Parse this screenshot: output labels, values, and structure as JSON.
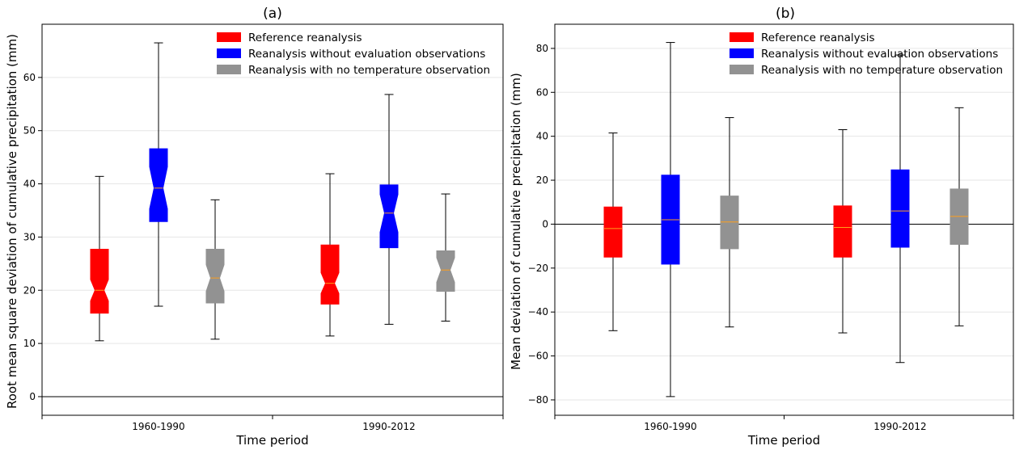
{
  "colors": {
    "reference": "#ff0000",
    "without_eval": "#0000ff",
    "no_temperature": "#929292",
    "median": "#ff9f1c",
    "zero_line": "#000000",
    "grid": "#e6e6e6"
  },
  "chart_data": [
    {
      "type": "box",
      "title": "(a)",
      "xlabel": "Time period",
      "ylabel": "Root mean square deviation of cumulative precipitation (mm)",
      "categories": [
        "1960-1990",
        "1990-2012"
      ],
      "ylim": [
        -3.5,
        70
      ],
      "yticks": [
        0,
        10,
        20,
        30,
        40,
        50,
        60
      ],
      "grid": "horizontal",
      "zero_line": true,
      "legend_position": "top-right",
      "notched": true,
      "series": [
        {
          "name": "Reference reanalysis",
          "color_key": "reference",
          "boxes": [
            {
              "whisker_low": 10.5,
              "q1": 15.7,
              "median": 20.0,
              "q3": 27.7,
              "whisker_high": 41.4,
              "notch_low": 18.0,
              "notch_high": 22.0
            },
            {
              "whisker_low": 11.4,
              "q1": 17.4,
              "median": 21.3,
              "q3": 28.5,
              "whisker_high": 41.9,
              "notch_low": 19.4,
              "notch_high": 23.3
            }
          ]
        },
        {
          "name": "Reanalysis without evaluation observations",
          "color_key": "without_eval",
          "boxes": [
            {
              "whisker_low": 17.0,
              "q1": 32.9,
              "median": 39.2,
              "q3": 46.6,
              "whisker_high": 66.5,
              "notch_low": 35.3,
              "notch_high": 43.2
            },
            {
              "whisker_low": 13.6,
              "q1": 28.0,
              "median": 34.5,
              "q3": 39.8,
              "whisker_high": 56.8,
              "notch_low": 30.9,
              "notch_high": 38.0
            }
          ]
        },
        {
          "name": "Reanalysis with no temperature observation",
          "color_key": "no_temperature",
          "boxes": [
            {
              "whisker_low": 10.8,
              "q1": 17.6,
              "median": 22.3,
              "q3": 27.7,
              "whisker_high": 37.0,
              "notch_low": 19.8,
              "notch_high": 24.8
            },
            {
              "whisker_low": 14.2,
              "q1": 19.8,
              "median": 23.8,
              "q3": 27.4,
              "whisker_high": 38.1,
              "notch_low": 21.5,
              "notch_high": 26.1
            }
          ]
        }
      ]
    },
    {
      "type": "box",
      "title": "(b)",
      "xlabel": "Time period",
      "ylabel": "Mean deviation of cumulative precipitation (mm)",
      "categories": [
        "1960-1990",
        "1990-2012"
      ],
      "ylim": [
        -87,
        91
      ],
      "yticks": [
        -80,
        -60,
        -40,
        -20,
        0,
        20,
        40,
        60,
        80
      ],
      "grid": "horizontal",
      "zero_line": true,
      "legend_position": "top-right",
      "notched": false,
      "series": [
        {
          "name": "Reference reanalysis",
          "color_key": "reference",
          "boxes": [
            {
              "whisker_low": -48.5,
              "q1": -15.0,
              "median": -2.0,
              "q3": 7.8,
              "whisker_high": 41.5
            },
            {
              "whisker_low": -49.5,
              "q1": -15.0,
              "median": -1.5,
              "q3": 8.3,
              "whisker_high": 43.0
            }
          ]
        },
        {
          "name": "Reanalysis without evaluation observations",
          "color_key": "without_eval",
          "boxes": [
            {
              "whisker_low": -78.5,
              "q1": -18.2,
              "median": 2.0,
              "q3": 22.3,
              "whisker_high": 82.7
            },
            {
              "whisker_low": -63.0,
              "q1": -10.5,
              "median": 6.0,
              "q3": 24.7,
              "whisker_high": 77.0
            }
          ]
        },
        {
          "name": "Reanalysis with no temperature observation",
          "color_key": "no_temperature",
          "boxes": [
            {
              "whisker_low": -46.8,
              "q1": -11.2,
              "median": 1.0,
              "q3": 12.8,
              "whisker_high": 48.5
            },
            {
              "whisker_low": -46.3,
              "q1": -9.2,
              "median": 3.5,
              "q3": 16.0,
              "whisker_high": 53.0
            }
          ]
        }
      ]
    }
  ]
}
